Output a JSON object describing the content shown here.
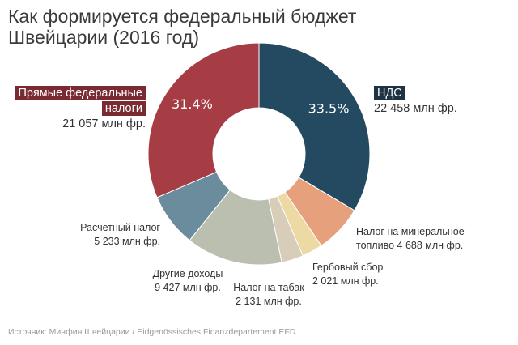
{
  "title": {
    "line1": "Как формируется федеральный бюджет",
    "line2": "Швейцарии (2016 год)"
  },
  "chart_data": {
    "type": "pie",
    "donut": true,
    "unit": "млн фр.",
    "slices": [
      {
        "label": "НДС",
        "value": 22458,
        "value_text": "22 458 млн фр.",
        "percent_text": "33.5%",
        "color": "#244a61"
      },
      {
        "label": "Налог на минеральное топливо",
        "value": 4688,
        "value_text": "4 688 млн фр.",
        "color": "#e7a07c"
      },
      {
        "label": "Гербовый сбор",
        "value": 2021,
        "value_text": "2 021 млн фр.",
        "color": "#ecd9a3"
      },
      {
        "label": "Налог на табак",
        "value": 2131,
        "value_text": "2 131 млн фр.",
        "color": "#d8cdb8"
      },
      {
        "label": "Другие доходы",
        "value": 9427,
        "value_text": "9 427 млн фр.",
        "color": "#bbbfb0"
      },
      {
        "label": "Расчетный налог",
        "value": 5233,
        "value_text": "5 233 млн фр.",
        "color": "#6b8c9c"
      },
      {
        "label": "Прямые федеральные налоги",
        "value": 21057,
        "value_text": "21 057 млн фр.",
        "percent_text": "31.4%",
        "color": "#a63c44"
      }
    ]
  },
  "labels": {
    "direct_taxes_line1": "Прямые федеральные",
    "direct_taxes_line2": "налоги",
    "vat": "НДС",
    "fuel_line1": "Налог на минеральное",
    "fuel_line2": "топливо",
    "stamp": "Гербовый сбор",
    "tobacco": "Налог на табак",
    "other": "Другие доходы",
    "withholding": "Расчетный налог"
  },
  "source": "Источник: Минфин Швейцарии / Eidgenössisches Finanzdepartement EFD"
}
